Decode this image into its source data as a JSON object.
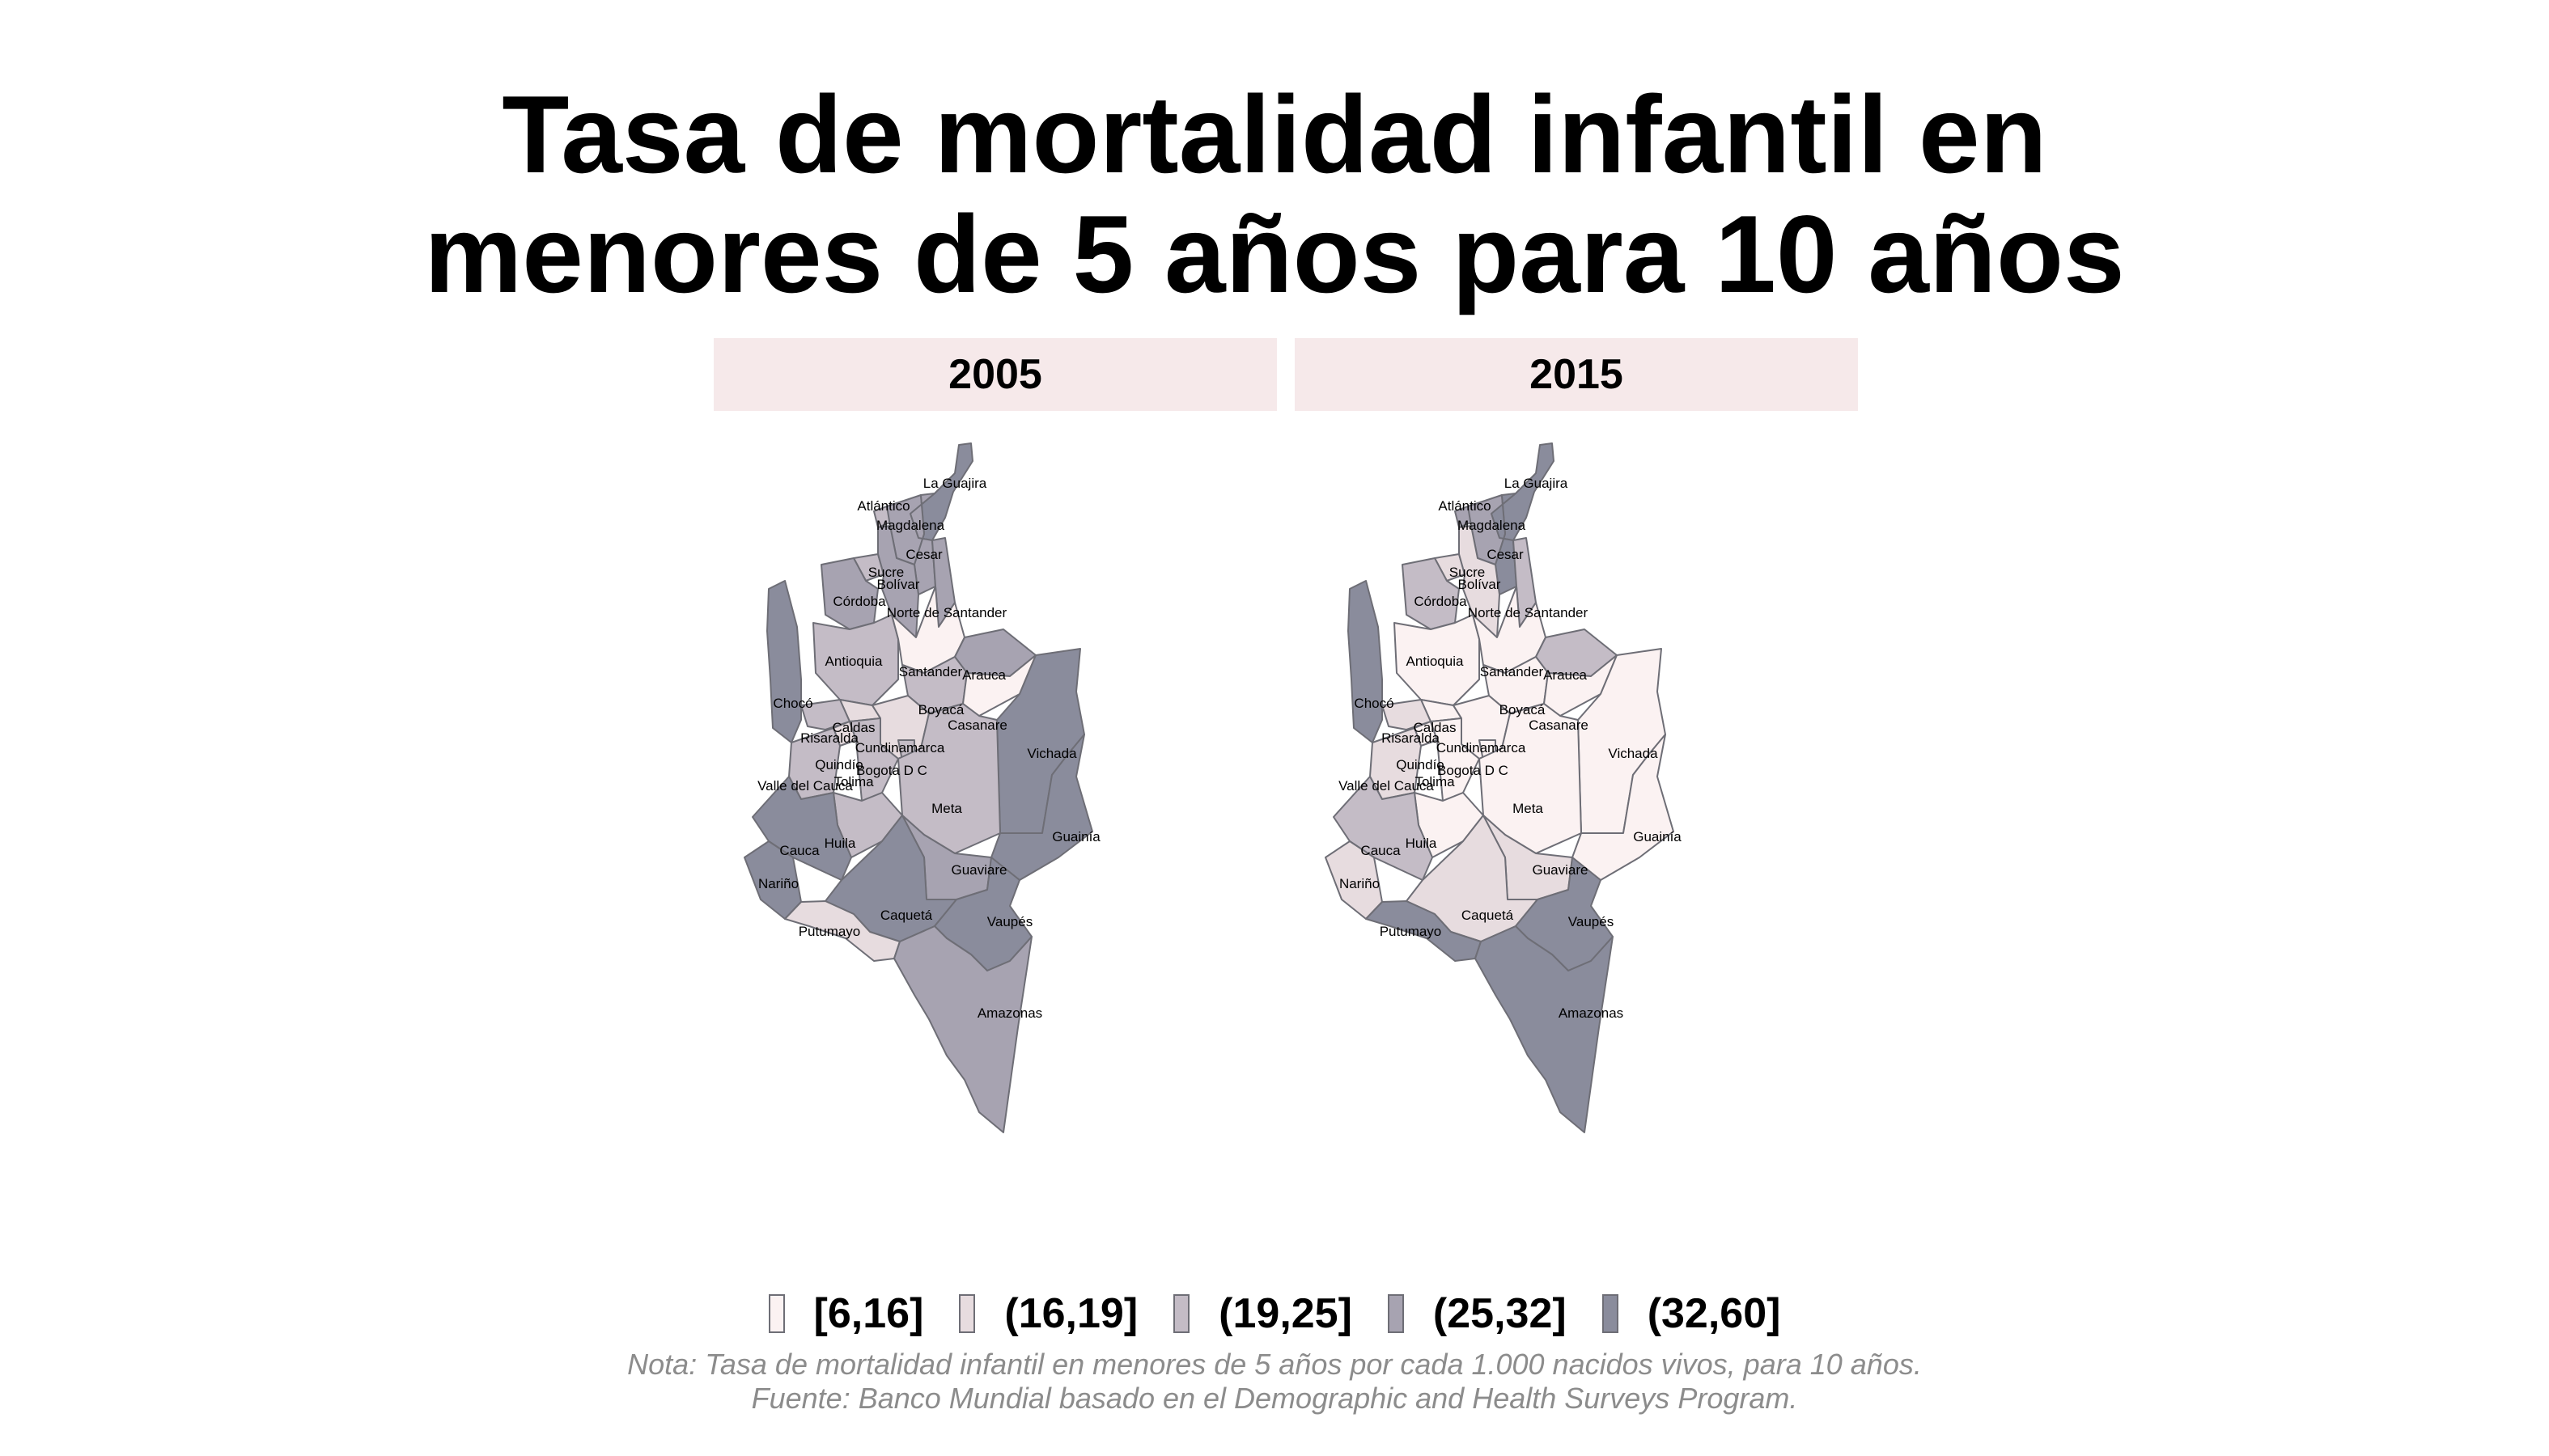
{
  "title": {
    "line1": "Tasa de mortalidad infantil en",
    "line2": "menores de 5 años para 10 años"
  },
  "panels": [
    {
      "year": "2005"
    },
    {
      "year": "2015"
    }
  ],
  "legend": {
    "classes": [
      {
        "label": "[6,16]",
        "color": "#fbf2f2"
      },
      {
        "label": "(16,19]",
        "color": "#e7dcdf"
      },
      {
        "label": "(19,25]",
        "color": "#c4bcc6"
      },
      {
        "label": "(25,32]",
        "color": "#a7a3b1"
      },
      {
        "label": "(32,60]",
        "color": "#8a8c9c"
      }
    ]
  },
  "note": {
    "line1": "Nota: Tasa de mortalidad infantil en menores de 5 años por cada 1.000 nacidos vivos, para 10 años.",
    "line2": "Fuente: Banco Mundial basado en el Demographic and Health Surveys Program."
  },
  "departments": [
    {
      "name": "La Guajira",
      "class_2005": 4,
      "class_2015": 4
    },
    {
      "name": "Atlántico",
      "class_2005": 2,
      "class_2015": 3
    },
    {
      "name": "Magdalena",
      "class_2005": 3,
      "class_2015": 3
    },
    {
      "name": "Cesar",
      "class_2005": 3,
      "class_2015": 4
    },
    {
      "name": "Sucre",
      "class_2005": 2,
      "class_2015": 1
    },
    {
      "name": "Bolívar",
      "class_2005": 3,
      "class_2015": 1
    },
    {
      "name": "Córdoba",
      "class_2005": 3,
      "class_2015": 2
    },
    {
      "name": "Norte de Santander",
      "class_2005": 3,
      "class_2015": 2
    },
    {
      "name": "Antioquia",
      "class_2005": 2,
      "class_2015": 0
    },
    {
      "name": "Santander",
      "class_2005": 0,
      "class_2015": 0
    },
    {
      "name": "Arauca",
      "class_2005": 3,
      "class_2015": 2
    },
    {
      "name": "Chocó",
      "class_2005": 4,
      "class_2015": 4
    },
    {
      "name": "Boyacá",
      "class_2005": 2,
      "class_2015": 0
    },
    {
      "name": "Casanare",
      "class_2005": 0,
      "class_2015": 0
    },
    {
      "name": "Vichada",
      "class_2005": 4,
      "class_2015": 0
    },
    {
      "name": "Caldas",
      "class_2005": 1,
      "class_2015": 0
    },
    {
      "name": "Risaralda",
      "class_2005": 2,
      "class_2015": 1
    },
    {
      "name": "Cundinamarca",
      "class_2005": 1,
      "class_2015": 0
    },
    {
      "name": "Quindío",
      "class_2005": 1,
      "class_2015": 0
    },
    {
      "name": "Bogota D C",
      "class_2005": 2,
      "class_2015": 0
    },
    {
      "name": "Tolima",
      "class_2005": 2,
      "class_2015": 0
    },
    {
      "name": "Valle del Cauca",
      "class_2005": 2,
      "class_2015": 1
    },
    {
      "name": "Meta",
      "class_2005": 2,
      "class_2015": 0
    },
    {
      "name": "Guainía",
      "class_2005": 4,
      "class_2015": 0
    },
    {
      "name": "Huila",
      "class_2005": 2,
      "class_2015": 0
    },
    {
      "name": "Cauca",
      "class_2005": 4,
      "class_2015": 2
    },
    {
      "name": "Guaviare",
      "class_2005": 3,
      "class_2015": 1
    },
    {
      "name": "Nariño",
      "class_2005": 4,
      "class_2015": 1
    },
    {
      "name": "Caquetá",
      "class_2005": 4,
      "class_2015": 1
    },
    {
      "name": "Vaupés",
      "class_2005": 4,
      "class_2015": 4
    },
    {
      "name": "Putumayo",
      "class_2005": 1,
      "class_2015": 4
    },
    {
      "name": "Amazonas",
      "class_2005": 3,
      "class_2015": 4
    }
  ]
}
